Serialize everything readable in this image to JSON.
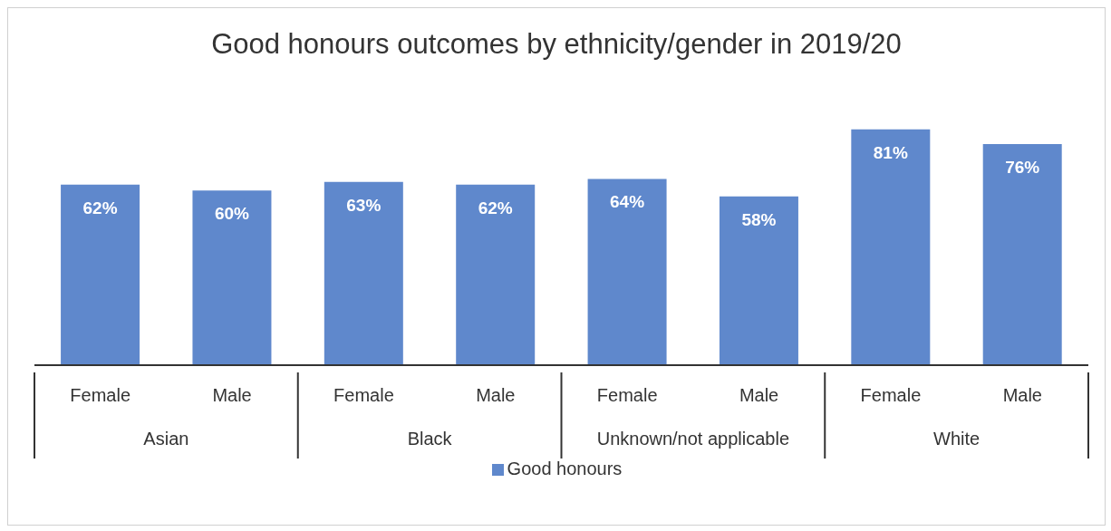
{
  "chart_data": {
    "type": "bar",
    "title": "Good honours outcomes by ethnicity/gender in 2019/20",
    "categories": [
      "Female",
      "Male",
      "Female",
      "Male",
      "Female",
      "Male",
      "Female",
      "Male"
    ],
    "annotations": [
      "Asian",
      "Black",
      "Unknown/not applicable",
      "White"
    ],
    "series": [
      {
        "name": "Good honours",
        "color": "#5f88cc",
        "values": [
          62,
          60,
          63,
          62,
          64,
          58,
          81,
          76
        ],
        "value_labels": [
          "62%",
          "60%",
          "63%",
          "62%",
          "64%",
          "58%",
          "81%",
          "76%"
        ]
      }
    ],
    "legend": "bottom",
    "grid": false
  }
}
